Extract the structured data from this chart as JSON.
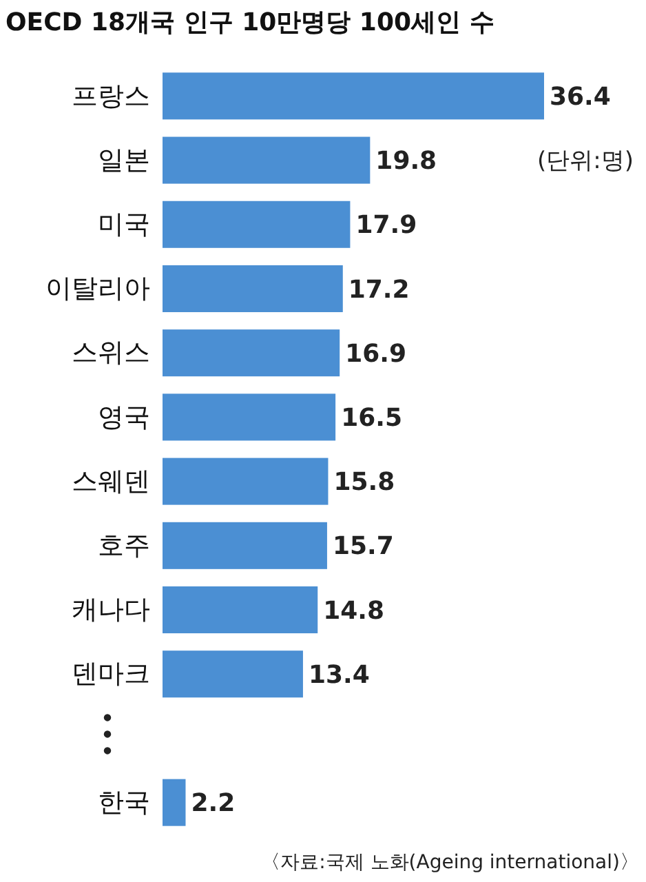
{
  "chart_data": {
    "type": "bar",
    "orientation": "horizontal",
    "title": "OECD 18개국 인구 10만명당 100세인 수",
    "categories": [
      "프랑스",
      "일본",
      "미국",
      "이탈리아",
      "스위스",
      "영국",
      "스웨덴",
      "호주",
      "캐나다",
      "덴마크",
      null,
      "한국"
    ],
    "values": [
      36.4,
      19.8,
      17.9,
      17.2,
      16.9,
      16.5,
      15.8,
      15.7,
      14.8,
      13.4,
      null,
      2.2
    ],
    "color": "#4b8fd3",
    "data_labels": true,
    "annotations": [
      "(단위:명)",
      "〈자료:국제 노화(Ageing international)〉"
    ]
  }
}
